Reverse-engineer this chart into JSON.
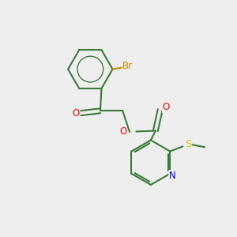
{
  "bg_color": "#eeeeee",
  "bond_color": "#3a7a3a",
  "bond_width": 1.5,
  "atom_colors": {
    "Br": "#cc8800",
    "O": "#ff0000",
    "N": "#0000dd",
    "S": "#cccc00",
    "C": "#3a7a3a"
  },
  "font_size": 8.5,
  "figsize": [
    3.0,
    3.0
  ],
  "dpi": 100
}
